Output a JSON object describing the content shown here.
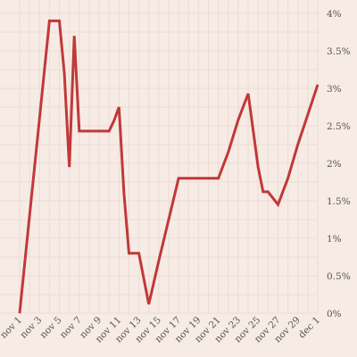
{
  "chart_data": {
    "type": "line",
    "title": "",
    "xlabel": "",
    "ylabel": "",
    "x_tick_labels": [
      "nov 1",
      "nov 3",
      "nov 5",
      "nov 7",
      "nov 9",
      "nov 11",
      "nov 13",
      "nov 15",
      "nov 17",
      "nov 19",
      "nov 21",
      "nov 23",
      "nov 25",
      "nov 27",
      "nov 29",
      "dec 1"
    ],
    "y_tick_labels": [
      "0%",
      "0.5%",
      "1%",
      "1.5%",
      "2%",
      "2.5%",
      "3%",
      "3.5%",
      "4%"
    ],
    "ylim": [
      0,
      4
    ],
    "y_axis_side": "right",
    "grid": true,
    "series": [
      {
        "color": "#c0393a",
        "x": [
          1,
          2,
          3,
          4,
          5,
          5.5,
          6,
          6.5,
          7,
          8,
          9,
          10,
          10.5,
          11,
          11.5,
          12,
          13,
          14,
          15,
          16,
          17,
          18,
          19,
          20,
          21,
          22,
          23,
          24,
          25,
          25.5,
          26,
          27,
          28,
          29,
          30,
          31
        ],
        "values": [
          0,
          1.3,
          2.6,
          3.9,
          3.9,
          3.2,
          1.95,
          3.7,
          2.43,
          2.43,
          2.43,
          2.43,
          2.57,
          2.75,
          1.6,
          0.8,
          0.8,
          0.12,
          0.7,
          1.25,
          1.8,
          1.8,
          1.8,
          1.8,
          1.8,
          2.15,
          2.58,
          2.93,
          1.95,
          1.62,
          1.62,
          1.45,
          1.8,
          2.25,
          2.65,
          3.05
        ]
      }
    ]
  }
}
